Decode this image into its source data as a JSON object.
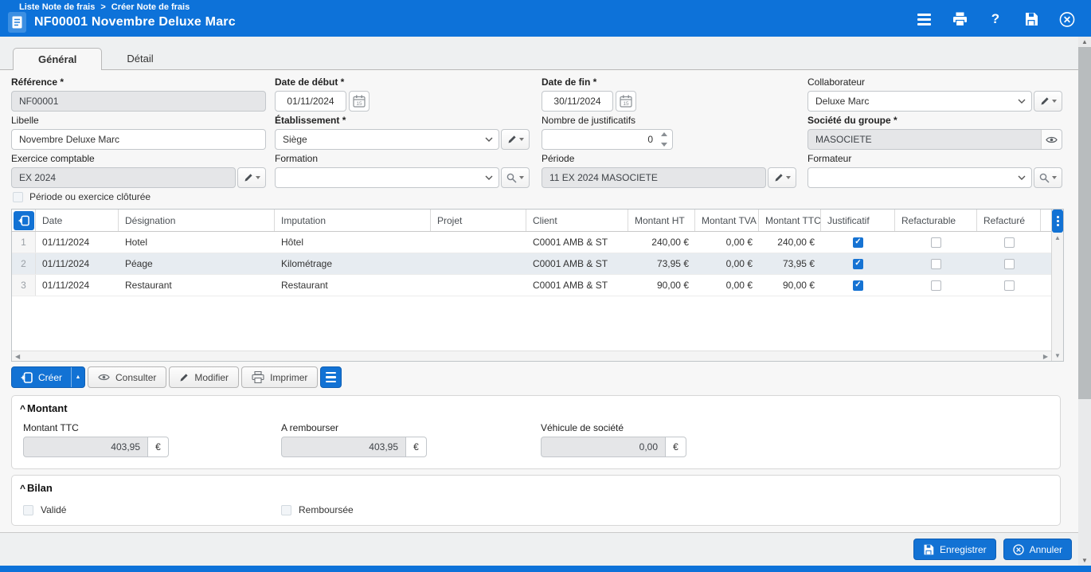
{
  "colors": {
    "header_blue": "#0d72d9",
    "button_blue": "#1272d4",
    "checkbox_blue": "#1673d3",
    "selected_row": "#e7ecf1"
  },
  "header": {
    "breadcrumb": {
      "parent": "Liste Note de frais",
      "separator": ">",
      "current": "Créer Note de frais"
    },
    "title": "NF00001 Novembre Deluxe Marc"
  },
  "tabs": [
    {
      "label": "Général",
      "active": true
    },
    {
      "label": "Détail",
      "active": false
    }
  ],
  "form": {
    "reference": {
      "label": "Référence *",
      "value": "NF00001",
      "disabled": true
    },
    "date_debut": {
      "label": "Date de début *",
      "value": "01/11/2024"
    },
    "date_fin": {
      "label": "Date de fin *",
      "value": "30/11/2024"
    },
    "collaborateur": {
      "label": "Collaborateur",
      "value": "Deluxe Marc"
    },
    "libelle": {
      "label": "Libelle",
      "value": "Novembre Deluxe Marc"
    },
    "etablissement": {
      "label": "Établissement *",
      "value": "Siège"
    },
    "nombre_justificatifs": {
      "label": "Nombre de justificatifs",
      "value": "0"
    },
    "societe_groupe": {
      "label": "Société du groupe *",
      "value": "MASOCIETE",
      "disabled": true
    },
    "exercice_comptable": {
      "label": "Exercice comptable",
      "value": "EX 2024",
      "disabled": true
    },
    "formation": {
      "label": "Formation",
      "value": ""
    },
    "periode": {
      "label": "Période",
      "value": "11 EX 2024 MASOCIETE",
      "disabled": true
    },
    "formateur": {
      "label": "Formateur",
      "value": ""
    },
    "cloture": {
      "label": "Période ou exercice clôturée",
      "checked": false
    }
  },
  "table": {
    "columns": [
      "Date",
      "Désignation",
      "Imputation",
      "Projet",
      "Client",
      "Montant HT",
      "Montant TVA",
      "Montant TTC",
      "Justificatif",
      "Refacturable",
      "Refacturé"
    ],
    "rows": [
      {
        "num": "1",
        "date": "01/11/2024",
        "designation": "Hotel",
        "imputation": "Hôtel",
        "projet": "",
        "client": "C0001 AMB & ST",
        "montant_ht": "240,00 €",
        "montant_tva": "0,00 €",
        "montant_ttc": "240,00 €",
        "justificatif": true,
        "refacturable": false,
        "refacture": false,
        "selected": false
      },
      {
        "num": "2",
        "date": "01/11/2024",
        "designation": "Péage",
        "imputation": "Kilométrage",
        "projet": "",
        "client": "C0001 AMB & ST",
        "montant_ht": "73,95 €",
        "montant_tva": "0,00 €",
        "montant_ttc": "73,95 €",
        "justificatif": true,
        "refacturable": false,
        "refacture": false,
        "selected": true
      },
      {
        "num": "3",
        "date": "01/11/2024",
        "designation": "Restaurant",
        "imputation": "Restaurant",
        "projet": "",
        "client": "C0001 AMB & ST",
        "montant_ht": "90,00 €",
        "montant_tva": "0,00 €",
        "montant_ttc": "90,00 €",
        "justificatif": true,
        "refacturable": false,
        "refacture": false,
        "selected": false
      }
    ]
  },
  "toolbar": {
    "creer": "Créer",
    "consulter": "Consulter",
    "modifier": "Modifier",
    "imprimer": "Imprimer"
  },
  "montant": {
    "title": "Montant",
    "montant_ttc": {
      "label": "Montant TTC",
      "value": "403,95",
      "suffix": "€"
    },
    "a_rembourser": {
      "label": "A rembourser",
      "value": "403,95",
      "suffix": "€"
    },
    "vehicule": {
      "label": "Véhicule de société",
      "value": "0,00",
      "suffix": "€"
    }
  },
  "bilan": {
    "title": "Bilan",
    "valide": {
      "label": "Validé",
      "checked": false
    },
    "remboursee": {
      "label": "Remboursée",
      "checked": false
    }
  },
  "footer": {
    "enregistrer": "Enregistrer",
    "annuler": "Annuler"
  }
}
